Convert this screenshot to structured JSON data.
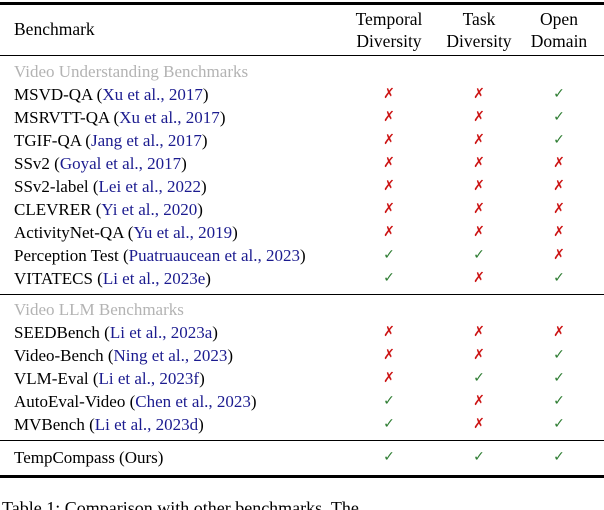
{
  "table": {
    "header": {
      "benchmark": "Benchmark",
      "cols": [
        {
          "line1": "Temporal",
          "line2": "Diversity"
        },
        {
          "line1": "Task",
          "line2": "Diversity"
        },
        {
          "line1": "Open",
          "line2": "Domain"
        }
      ]
    },
    "sections": [
      {
        "title": "Video Understanding Benchmarks",
        "rows": [
          {
            "name": "MSVD-QA",
            "citation": "Xu et al., 2017",
            "citation_is_link": true,
            "marks": [
              false,
              false,
              true
            ]
          },
          {
            "name": "MSRVTT-QA",
            "citation": "Xu et al., 2017",
            "citation_is_link": true,
            "marks": [
              false,
              false,
              true
            ]
          },
          {
            "name": "TGIF-QA",
            "citation": "Jang et al., 2017",
            "citation_is_link": true,
            "marks": [
              false,
              false,
              true
            ]
          },
          {
            "name": "SSv2",
            "citation": "Goyal et al., 2017",
            "citation_is_link": true,
            "marks": [
              false,
              false,
              false
            ]
          },
          {
            "name": "SSv2-label",
            "citation": "Lei et al., 2022",
            "citation_is_link": true,
            "marks": [
              false,
              false,
              false
            ]
          },
          {
            "name": "CLEVRER",
            "citation": "Yi et al., 2020",
            "citation_is_link": true,
            "marks": [
              false,
              false,
              false
            ]
          },
          {
            "name": "ActivityNet-QA",
            "citation": "Yu et al., 2019",
            "citation_is_link": true,
            "marks": [
              false,
              false,
              false
            ]
          },
          {
            "name": "Perception Test",
            "citation": "Puatruaucean et al., 2023",
            "citation_is_link": true,
            "marks": [
              true,
              true,
              false
            ]
          },
          {
            "name": "VITATECS",
            "citation": "Li et al., 2023e",
            "citation_is_link": true,
            "marks": [
              true,
              false,
              true
            ]
          }
        ]
      },
      {
        "title": "Video LLM Benchmarks",
        "rows": [
          {
            "name": "SEEDBench",
            "citation": "Li et al., 2023a",
            "citation_is_link": true,
            "marks": [
              false,
              false,
              false
            ]
          },
          {
            "name": "Video-Bench",
            "citation": "Ning et al., 2023",
            "citation_is_link": true,
            "marks": [
              false,
              false,
              true
            ]
          },
          {
            "name": "VLM-Eval",
            "citation": "Li et al., 2023f",
            "citation_is_link": true,
            "marks": [
              false,
              true,
              true
            ]
          },
          {
            "name": "AutoEval-Video",
            "citation": "Chen et al., 2023",
            "citation_is_link": true,
            "marks": [
              true,
              false,
              true
            ]
          },
          {
            "name": "MVBench",
            "citation": "Li et al., 2023d",
            "citation_is_link": true,
            "marks": [
              true,
              false,
              true
            ]
          }
        ]
      }
    ],
    "final_rows": [
      {
        "name": "TempCompass",
        "citation": "Ours",
        "citation_is_link": false,
        "marks": [
          true,
          true,
          true
        ]
      }
    ]
  },
  "marks": {
    "check_glyph": "✓",
    "cross_glyph": "✗",
    "check_color": "#2e7d32",
    "cross_color": "#cc1414"
  },
  "caption": "Table 1: Comparison with other benchmarks. The"
}
